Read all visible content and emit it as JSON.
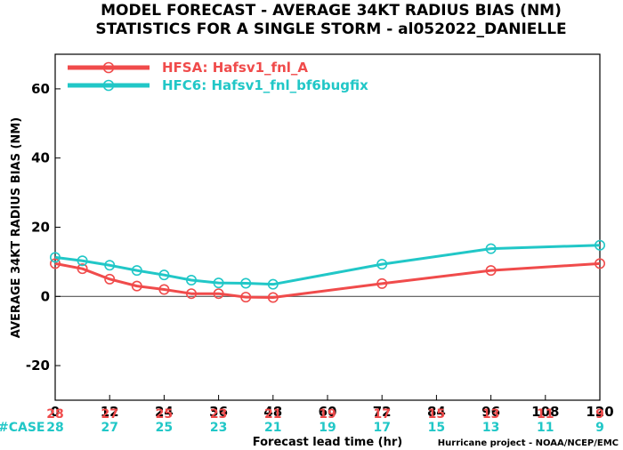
{
  "chart_data": {
    "type": "line",
    "title_line1": "MODEL FORECAST - AVERAGE 34KT RADIUS BIAS (NM)",
    "title_line2": "STATISTICS FOR A SINGLE STORM - al052022_DANIELLE",
    "xlabel": "Forecast lead time (hr)",
    "ylabel": "AVERAGE 34KT RADIUS BIAS (NM)",
    "credit": "Hurricane project - NOAA/NCEP/EMC",
    "case_label": "#CASE",
    "xlim": [
      0,
      120
    ],
    "ylim": [
      -30,
      70
    ],
    "x_ticks": [
      0,
      12,
      24,
      36,
      48,
      60,
      72,
      84,
      96,
      108,
      120
    ],
    "y_ticks": [
      -20,
      0,
      20,
      40,
      60
    ],
    "zero_line": true,
    "grid": false,
    "legend_position": "top-left",
    "series": [
      {
        "name": "HFSA: Hafsv1_fnl_A",
        "color": "#f04b4b",
        "x": [
          0,
          6,
          12,
          18,
          24,
          30,
          36,
          42,
          48,
          72,
          96,
          120
        ],
        "y": [
          9.5,
          8.0,
          5.0,
          3.0,
          2.0,
          0.8,
          0.8,
          -0.2,
          -0.3,
          3.7,
          7.5,
          9.5
        ]
      },
      {
        "name": "HFC6: Hafsv1_fnl_bf6bugfix",
        "color": "#21c7c7",
        "x": [
          0,
          6,
          12,
          18,
          24,
          30,
          36,
          42,
          48,
          72,
          96,
          120
        ],
        "y": [
          11.3,
          10.3,
          9.0,
          7.5,
          6.2,
          4.7,
          3.9,
          3.8,
          3.5,
          9.3,
          13.8,
          14.8
        ]
      }
    ],
    "cases": [
      {
        "x": 0,
        "a": "28",
        "b": "28"
      },
      {
        "x": 12,
        "a": "27",
        "b": "27"
      },
      {
        "x": 24,
        "a": "25",
        "b": "25"
      },
      {
        "x": 36,
        "a": "23",
        "b": "23"
      },
      {
        "x": 48,
        "a": "21",
        "b": "21"
      },
      {
        "x": 60,
        "a": "19",
        "b": "19"
      },
      {
        "x": 72,
        "a": "17",
        "b": "17"
      },
      {
        "x": 84,
        "a": "15",
        "b": "15"
      },
      {
        "x": 96,
        "a": "13",
        "b": "13"
      },
      {
        "x": 108,
        "a": "11",
        "b": "11"
      },
      {
        "x": 120,
        "a": "9",
        "b": "9"
      }
    ]
  }
}
